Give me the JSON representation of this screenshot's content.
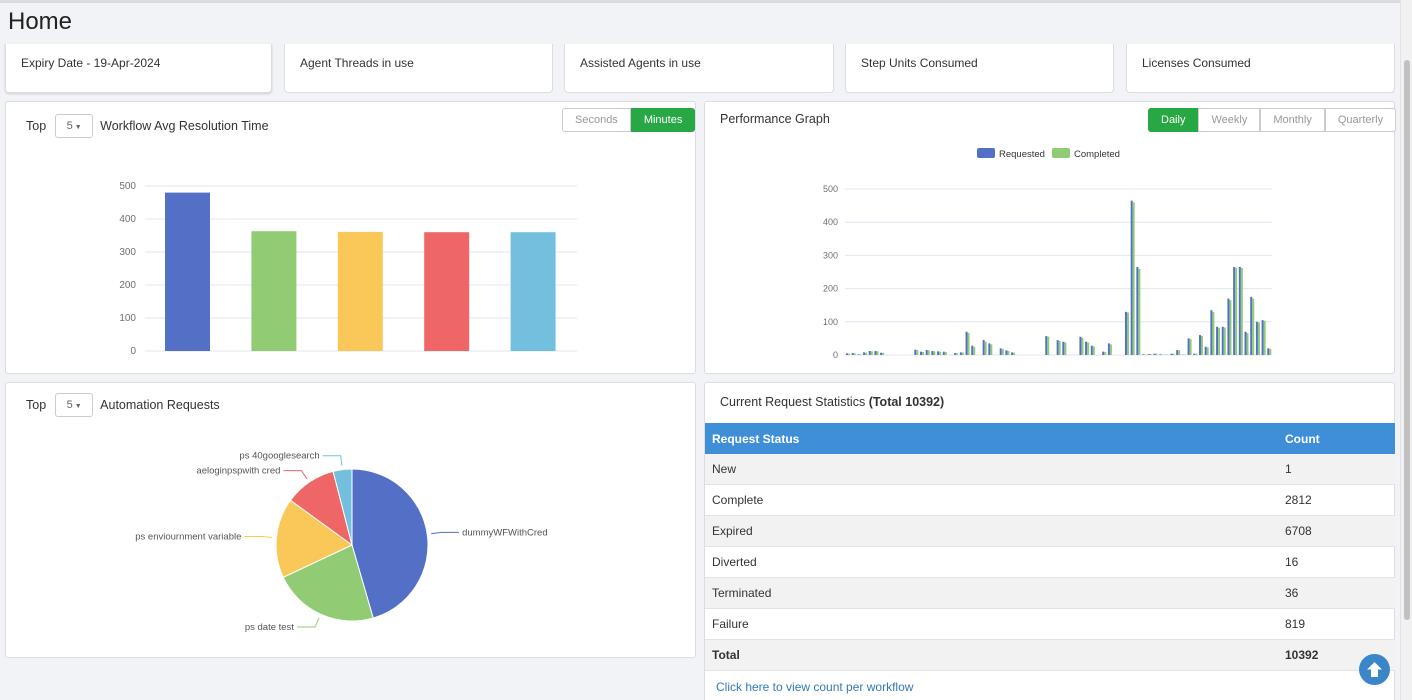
{
  "page": {
    "title": "Home"
  },
  "stat_cards": [
    {
      "label": "Expiry Date - 19-Apr-2024"
    },
    {
      "label": "Agent Threads in use"
    },
    {
      "label": "Assisted Agents in use"
    },
    {
      "label": "Step Units Consumed"
    },
    {
      "label": "Licenses Consumed"
    }
  ],
  "resolution_panel": {
    "top_label": "Top",
    "top_value": "5",
    "title": "Workflow Avg Resolution Time",
    "toggle": [
      {
        "label": "Seconds",
        "active": false
      },
      {
        "label": "Minutes",
        "active": true
      }
    ]
  },
  "performance_panel": {
    "title": "Performance Graph",
    "toggle": [
      {
        "label": "Daily",
        "active": true
      },
      {
        "label": "Weekly",
        "active": false
      },
      {
        "label": "Monthly",
        "active": false
      },
      {
        "label": "Quarterly",
        "active": false
      }
    ]
  },
  "automation_panel": {
    "top_label": "Top",
    "top_value": "5",
    "title": "Automation Requests"
  },
  "stats_panel": {
    "title": "Current Request Statistics",
    "total_label": "(Total 10392)",
    "headers": [
      "Request Status",
      "Count"
    ],
    "rows": [
      {
        "status": "New",
        "count": "1"
      },
      {
        "status": "Complete",
        "count": "2812"
      },
      {
        "status": "Expired",
        "count": "6708"
      },
      {
        "status": "Diverted",
        "count": "16"
      },
      {
        "status": "Terminated",
        "count": "36"
      },
      {
        "status": "Failure",
        "count": "819"
      }
    ],
    "total": {
      "status": "Total",
      "count": "10392"
    },
    "link_text": "Click here to view count per workflow"
  },
  "colors": {
    "blue": "#5470c6",
    "green": "#91cc75",
    "yellow": "#fac858",
    "red": "#ee6666",
    "cyan": "#73c0de",
    "table_header": "#3f8fd8",
    "active_button": "#28a745"
  },
  "icons": {
    "scroll_top": "arrow-up-circle-icon",
    "caret": "caret-down-icon"
  },
  "chart_data": [
    {
      "type": "bar",
      "categories": [
        "",
        "",
        "",
        "",
        ""
      ],
      "values": [
        480,
        363,
        361,
        360,
        360
      ],
      "colors": [
        "#5470c6",
        "#91cc75",
        "#fac858",
        "#ee6666",
        "#73c0de"
      ],
      "ylim": [
        0,
        500
      ],
      "yticks": [
        "0",
        "100",
        "200",
        "300",
        "400",
        "500"
      ],
      "grid": true
    },
    {
      "type": "bar",
      "legend": [
        "Requested",
        "Completed"
      ],
      "legend_position": "top-center",
      "ylim": [
        0,
        500
      ],
      "yticks": [
        "0",
        "100",
        "200",
        "300",
        "400",
        "500"
      ],
      "grid": true,
      "series": [
        {
          "name": "Requested",
          "color": "#5470c6",
          "values": [
            5,
            6,
            2,
            8,
            12,
            12,
            7,
            0,
            0,
            0,
            0,
            0,
            16,
            10,
            15,
            12,
            11,
            10,
            0,
            6,
            8,
            70,
            28,
            0,
            45,
            35,
            0,
            20,
            14,
            8,
            0,
            0,
            0,
            0,
            0,
            57,
            0,
            45,
            40,
            0,
            0,
            55,
            40,
            28,
            0,
            10,
            35,
            0,
            0,
            130,
            465,
            265,
            2,
            3,
            4,
            2,
            1,
            4,
            15,
            1,
            50,
            4,
            60,
            25,
            135,
            85,
            85,
            170,
            265,
            265,
            70,
            175,
            100,
            105,
            20
          ]
        },
        {
          "name": "Completed",
          "color": "#91cc75",
          "values": [
            4,
            5,
            2,
            7,
            11,
            11,
            6,
            0,
            0,
            0,
            0,
            0,
            15,
            9,
            14,
            11,
            10,
            9,
            0,
            5,
            7,
            66,
            25,
            0,
            40,
            32,
            0,
            18,
            12,
            7,
            0,
            0,
            0,
            0,
            0,
            55,
            0,
            42,
            38,
            0,
            0,
            52,
            38,
            26,
            0,
            9,
            32,
            0,
            0,
            128,
            460,
            260,
            2,
            3,
            4,
            2,
            1,
            4,
            14,
            1,
            48,
            4,
            57,
            23,
            130,
            82,
            83,
            165,
            262,
            262,
            66,
            170,
            98,
            103,
            18
          ]
        }
      ]
    },
    {
      "type": "pie",
      "slices": [
        {
          "label": "dummyWFWithCred",
          "value": 45.5,
          "color": "#5470c6"
        },
        {
          "label": "ps date test",
          "value": 22.5,
          "color": "#91cc75"
        },
        {
          "label": "ps enviournment variable",
          "value": 17,
          "color": "#fac858"
        },
        {
          "label": "aeloginpspwith cred",
          "value": 11,
          "color": "#ee6666"
        },
        {
          "label": "ps 40googlesearch",
          "value": 4,
          "color": "#73c0de"
        }
      ]
    }
  ]
}
